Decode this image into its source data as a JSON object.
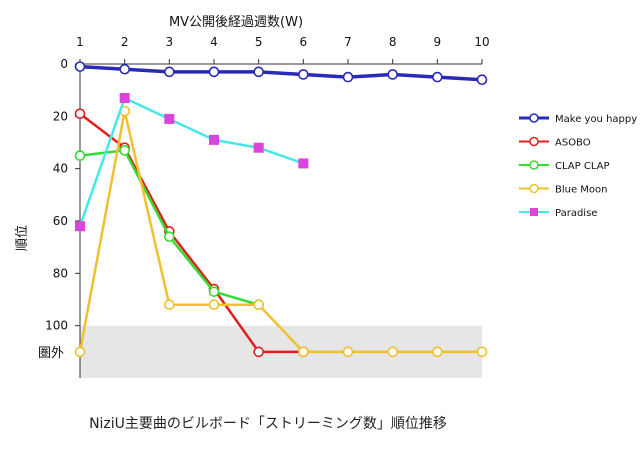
{
  "chart_data": {
    "type": "line",
    "title": "NiziU主要曲のビルボード「ストリーミング数」順位推移",
    "xlabel": "MV公開後経過週数(W)",
    "ylabel": "順位",
    "x": [
      1,
      2,
      3,
      4,
      5,
      6,
      7,
      8,
      9,
      10
    ],
    "xlim": [
      1,
      10
    ],
    "ylim": [
      0,
      120
    ],
    "y_inverted": true,
    "y_ticks": [
      0,
      20,
      40,
      60,
      80,
      100
    ],
    "out_of_chart_label": "圏外",
    "out_of_chart_value": 110,
    "out_of_chart_band_color": "#e6e6e6",
    "x_axis_position": "top",
    "legend_position": "right",
    "series": [
      {
        "name": "Make you happy",
        "color": "#2a2ab8",
        "marker": "circle",
        "values": [
          1,
          2,
          3,
          3,
          3,
          4,
          5,
          4,
          5,
          6
        ]
      },
      {
        "name": "ASOBO",
        "color": "#e02020",
        "marker": "circle",
        "values": [
          19,
          32,
          64,
          86,
          110,
          110,
          null,
          null,
          null,
          null
        ]
      },
      {
        "name": "CLAP CLAP",
        "color": "#33dd33",
        "marker": "circle",
        "values": [
          35,
          33,
          66,
          87,
          92,
          null,
          null,
          null,
          null,
          null
        ]
      },
      {
        "name": "Blue Moon",
        "color": "#f0c030",
        "marker": "circle",
        "values": [
          110,
          18,
          92,
          92,
          92,
          110,
          110,
          110,
          110,
          110
        ]
      },
      {
        "name": "Paradise",
        "color": "#44e8e8",
        "marker": "square",
        "marker_color": "#dd44dd",
        "values": [
          62,
          13,
          21,
          29,
          32,
          38,
          null,
          null,
          null,
          null
        ]
      }
    ]
  }
}
